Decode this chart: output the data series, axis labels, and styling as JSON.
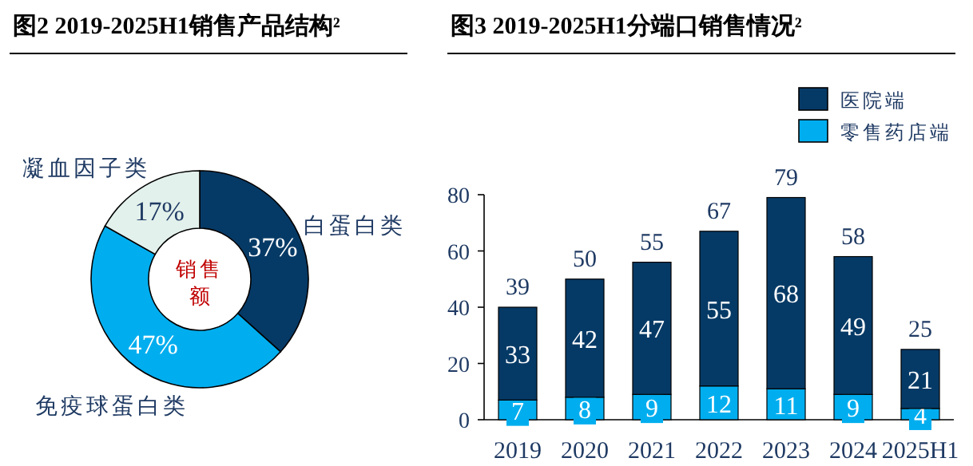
{
  "chart_data": [
    {
      "type": "donut",
      "title": "图2 2019-2025H1销售产品结构²",
      "categories": [
        "白蛋白类",
        "免疫球蛋白类",
        "凝血因子类"
      ],
      "values": [
        37,
        47,
        17
      ],
      "colors": [
        "#063a66",
        "#00aeef",
        "#e3f1ec"
      ],
      "value_labels": [
        "37%",
        "47%",
        "17%"
      ],
      "annotations": [
        "销售额"
      ]
    },
    {
      "type": "bar",
      "title": "图3 2019-2025H1分端口销售情况²",
      "categories": [
        "2019",
        "2020",
        "2021",
        "2022",
        "2023",
        "2024",
        "2025H1"
      ],
      "stacked": true,
      "series": [
        {
          "name": "零售药店端",
          "color": "#00aeef",
          "values": [
            7,
            8,
            9,
            12,
            11,
            9,
            4
          ]
        },
        {
          "name": "医院端",
          "color": "#063a66",
          "values": [
            33,
            42,
            47,
            55,
            68,
            49,
            21
          ]
        }
      ],
      "totals": [
        "39",
        "50",
        "55",
        "67",
        "79",
        "58",
        "25"
      ],
      "data_labels": true,
      "ylim": [
        0,
        80
      ],
      "yticks": [
        0,
        20,
        40,
        60,
        80
      ],
      "grid": false,
      "legend": "top right"
    }
  ]
}
